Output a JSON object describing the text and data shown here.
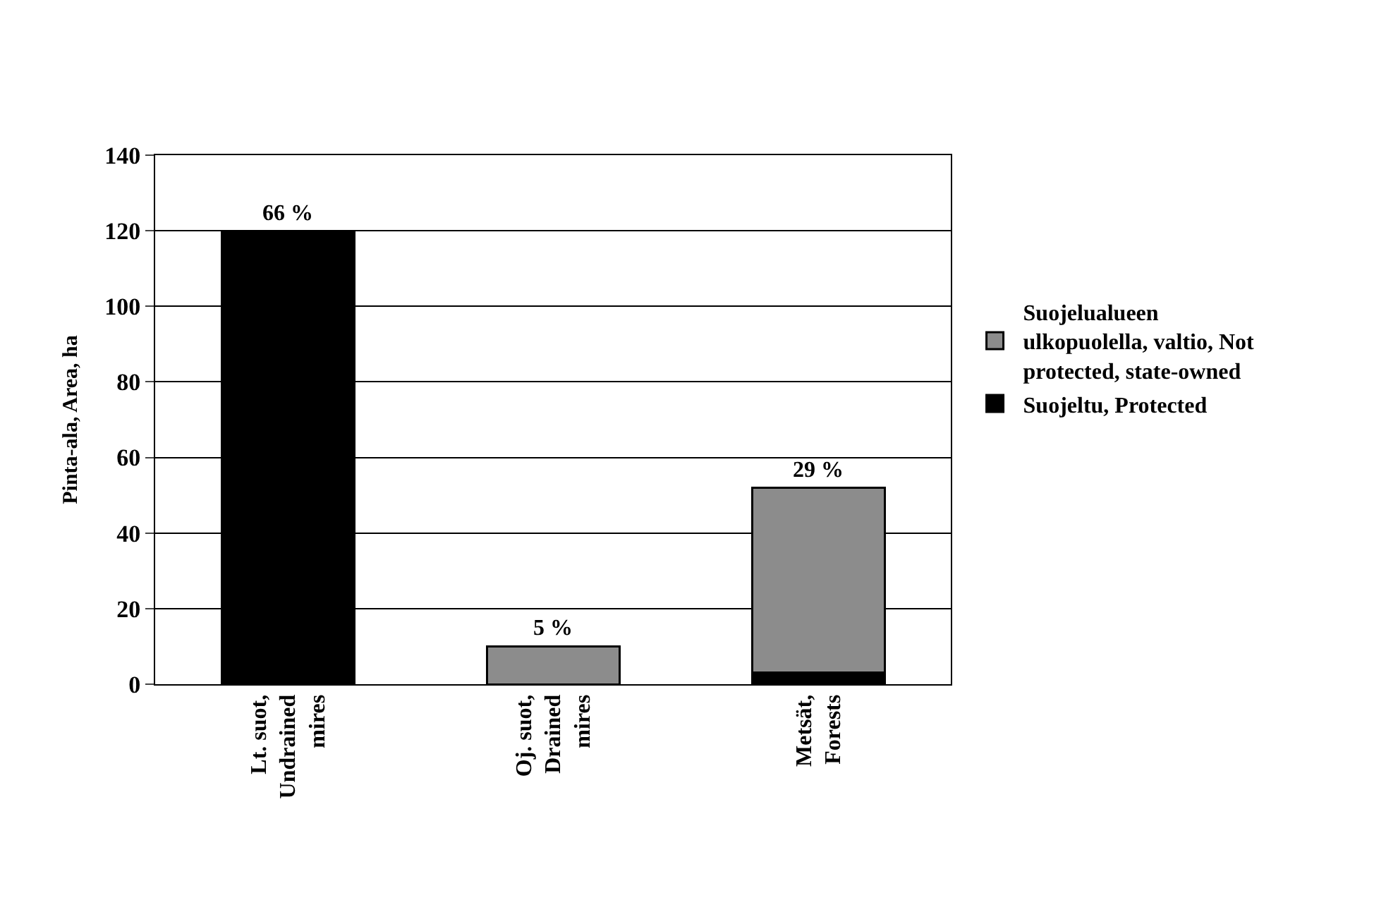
{
  "chart_data": {
    "type": "bar",
    "stacked": true,
    "ylabel": "Pinta-ala, Area, ha",
    "categories": [
      "Lt. suot, Undrained mires",
      "Oj. suot, Drained mires",
      "Metsät, Forests"
    ],
    "series": [
      {
        "name": "Suojeltu, Protected",
        "color": "#000000",
        "values": [
          120,
          null,
          3
        ]
      },
      {
        "name": "Suojelualueen ulkopuolella, valtio, Not protected, state-owned",
        "color": "#8c8c8c",
        "values": [
          null,
          10,
          49
        ]
      }
    ],
    "annotations": [
      {
        "text": "66 %",
        "x": "Lt. suot, Undrained mires",
        "y": 120
      },
      {
        "text": "5 %",
        "x": "Oj. suot, Drained mires",
        "y": 10
      },
      {
        "text": "29 %",
        "x": "Metsät, Forests",
        "y": 52
      }
    ],
    "ylim": [
      0,
      140
    ],
    "yticks": [
      0,
      20,
      40,
      60,
      80,
      100,
      120,
      140
    ],
    "grid": "y",
    "legend": "right"
  }
}
